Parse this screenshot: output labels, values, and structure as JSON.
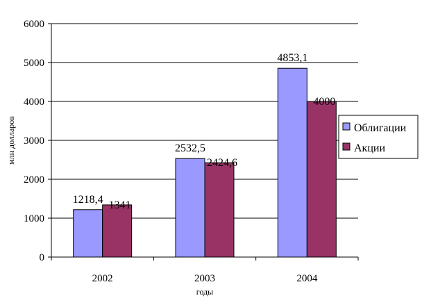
{
  "chart_data": {
    "type": "bar",
    "categories": [
      "2002",
      "2003",
      "2004"
    ],
    "series": [
      {
        "name": "Облигации",
        "values": [
          1218.4,
          2532.5,
          4853.1
        ],
        "labels": [
          "1218,4",
          "2532,5",
          "4853,1"
        ],
        "color": "#9999ff"
      },
      {
        "name": "Акции",
        "values": [
          1341,
          2424.6,
          4000
        ],
        "labels": [
          "1341",
          "2424,6",
          "4000"
        ],
        "color": "#993366"
      }
    ],
    "xlabel": "годы",
    "ylabel": "млн долларов",
    "ylim": [
      0,
      6000
    ],
    "yticks": [
      "0",
      "1000",
      "2000",
      "3000",
      "4000",
      "5000",
      "6000"
    ],
    "grid": true,
    "legend_position": "right"
  }
}
